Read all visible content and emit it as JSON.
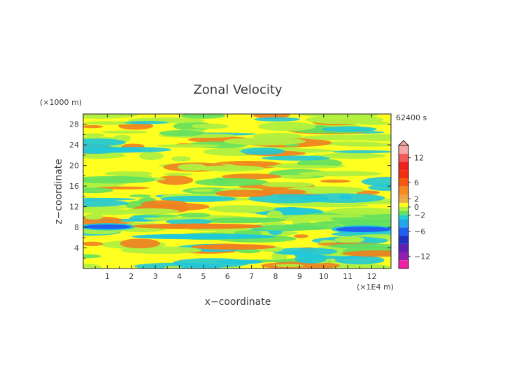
{
  "chart_data": {
    "type": "heatmap",
    "title": "Zonal Velocity",
    "xlabel": "x−coordinate",
    "ylabel": "z−coordinate",
    "x_unit": "(×1E4 m)",
    "y_unit": "(×1000 m)",
    "time_label": "62400 s",
    "xlim": [
      0,
      12.8
    ],
    "ylim": [
      0,
      30
    ],
    "x_ticks": [
      1,
      2,
      3,
      4,
      5,
      6,
      7,
      8,
      9,
      10,
      11,
      12
    ],
    "y_ticks": [
      4,
      8,
      12,
      16,
      20,
      24,
      28
    ],
    "colorbar": {
      "ticks": [
        "12",
        "6",
        "2",
        "0",
        "−2",
        "−6",
        "−12"
      ],
      "levels": [
        {
          "min": 13,
          "max": 15,
          "color": "#f4a6a6"
        },
        {
          "min": 11,
          "max": 13,
          "color": "#f05a5a"
        },
        {
          "min": 9,
          "max": 11,
          "color": "#ee2020"
        },
        {
          "min": 7,
          "max": 9,
          "color": "#f02e10"
        },
        {
          "min": 5,
          "max": 7,
          "color": "#f45a10"
        },
        {
          "min": 3,
          "max": 5,
          "color": "#f48a20"
        },
        {
          "min": 2,
          "max": 3,
          "color": "#f0a040"
        },
        {
          "min": 1,
          "max": 2,
          "color": "#e8b040"
        },
        {
          "min": 0,
          "max": 1,
          "color": "#ffff20"
        },
        {
          "min": -1,
          "max": 0,
          "color": "#b0f040"
        },
        {
          "min": -2,
          "max": -1,
          "color": "#60e060"
        },
        {
          "min": -3,
          "max": -2,
          "color": "#20d0d0"
        },
        {
          "min": -5,
          "max": -3,
          "color": "#20a8e8"
        },
        {
          "min": -7,
          "max": -5,
          "color": "#2060f0"
        },
        {
          "min": -9,
          "max": -7,
          "color": "#2030c0"
        },
        {
          "min": -11,
          "max": -9,
          "color": "#6020b0"
        },
        {
          "min": -13,
          "max": -11,
          "color": "#9020b0"
        },
        {
          "min": -15,
          "max": -13,
          "color": "#f020a0"
        }
      ]
    },
    "colors": {
      "positive_strong": "#f08020",
      "positive_weak": "#ffff20",
      "neutral": "#b0f040",
      "negative_weak": "#60e060",
      "negative": "#20c8d8",
      "negative_strong": "#2060f0"
    },
    "features": [
      {
        "kind": "jet",
        "sign": "negative",
        "x": [
          0,
          2
        ],
        "z": [
          7.8,
          8.4
        ],
        "value": -6
      },
      {
        "kind": "jet",
        "sign": "negative",
        "x": [
          10.5,
          12.8
        ],
        "z": [
          7.2,
          8.0
        ],
        "value": -5
      },
      {
        "kind": "band",
        "sign": "positive",
        "x": [
          2,
          7.5
        ],
        "z": [
          7.8,
          8.6
        ],
        "value": 2
      },
      {
        "kind": "band",
        "sign": "positive",
        "x": [
          4.5,
          8
        ],
        "z": [
          3.8,
          4.6
        ],
        "value": 2
      },
      {
        "kind": "band",
        "sign": "negative",
        "x": [
          2,
          8
        ],
        "z": [
          5.8,
          6.6
        ],
        "value": -2
      },
      {
        "kind": "band",
        "sign": "negative",
        "x": [
          5.5,
          7.5
        ],
        "z": [
          1.0,
          1.6
        ],
        "value": -2
      }
    ]
  }
}
